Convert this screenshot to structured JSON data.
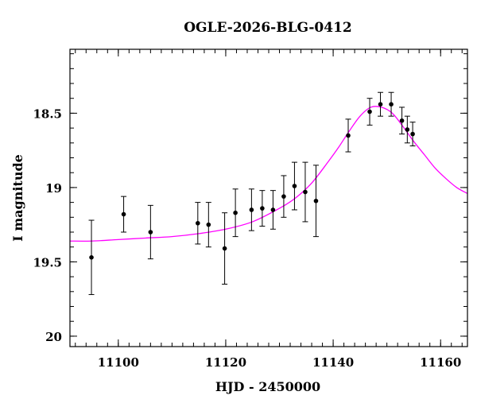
{
  "chart_data": {
    "type": "scatter",
    "title": "OGLE-2026-BLG-0412",
    "xlabel": "HJD - 2450000",
    "ylabel": "I magnitude",
    "xlim": [
      11091,
      11165
    ],
    "ylim": [
      20.07,
      18.07
    ],
    "y_inverted": true,
    "grid": false,
    "x_ticks": [
      11100,
      11120,
      11140,
      11160
    ],
    "x_tick_labels": [
      "11100",
      "11120",
      "11140",
      "11160"
    ],
    "y_ticks": [
      18.5,
      19,
      19.5,
      20
    ],
    "y_tick_labels": [
      "18.5",
      "19",
      "19.5",
      "20"
    ],
    "x_minor_step": 2,
    "y_minor_step": 0.1,
    "point_color": "#000000",
    "errorbar_color": "#000000",
    "model_color": "#ff00ff",
    "points": [
      {
        "x": 11095,
        "y": 19.47,
        "err": 0.25
      },
      {
        "x": 11101,
        "y": 19.18,
        "err": 0.12
      },
      {
        "x": 11106,
        "y": 19.3,
        "err": 0.18
      },
      {
        "x": 11114.8,
        "y": 19.24,
        "err": 0.14
      },
      {
        "x": 11116.8,
        "y": 19.25,
        "err": 0.15
      },
      {
        "x": 11119.8,
        "y": 19.41,
        "err": 0.24
      },
      {
        "x": 11121.8,
        "y": 19.17,
        "err": 0.16
      },
      {
        "x": 11124.8,
        "y": 19.15,
        "err": 0.14
      },
      {
        "x": 11126.8,
        "y": 19.14,
        "err": 0.12
      },
      {
        "x": 11128.8,
        "y": 19.15,
        "err": 0.13
      },
      {
        "x": 11130.8,
        "y": 19.06,
        "err": 0.14
      },
      {
        "x": 11132.8,
        "y": 18.99,
        "err": 0.16
      },
      {
        "x": 11134.8,
        "y": 19.03,
        "err": 0.2
      },
      {
        "x": 11136.8,
        "y": 19.09,
        "err": 0.24
      },
      {
        "x": 11142.8,
        "y": 18.65,
        "err": 0.11
      },
      {
        "x": 11146.8,
        "y": 18.49,
        "err": 0.09
      },
      {
        "x": 11148.8,
        "y": 18.44,
        "err": 0.08
      },
      {
        "x": 11150.8,
        "y": 18.44,
        "err": 0.08
      },
      {
        "x": 11152.8,
        "y": 18.55,
        "err": 0.09
      },
      {
        "x": 11153.8,
        "y": 18.61,
        "err": 0.09
      },
      {
        "x": 11154.8,
        "y": 18.64,
        "err": 0.08
      }
    ],
    "model": {
      "x": [
        11091,
        11095,
        11100,
        11105,
        11110,
        11115,
        11120,
        11125,
        11130,
        11133,
        11136,
        11139,
        11141,
        11143,
        11145,
        11147,
        11149,
        11151,
        11153,
        11155,
        11157,
        11159,
        11161,
        11163,
        11165
      ],
      "y": [
        19.36,
        19.36,
        19.35,
        19.34,
        19.33,
        19.31,
        19.28,
        19.23,
        19.14,
        19.07,
        18.97,
        18.83,
        18.73,
        18.62,
        18.52,
        18.46,
        18.46,
        18.5,
        18.59,
        18.69,
        18.78,
        18.87,
        18.94,
        19.0,
        19.04
      ]
    }
  }
}
